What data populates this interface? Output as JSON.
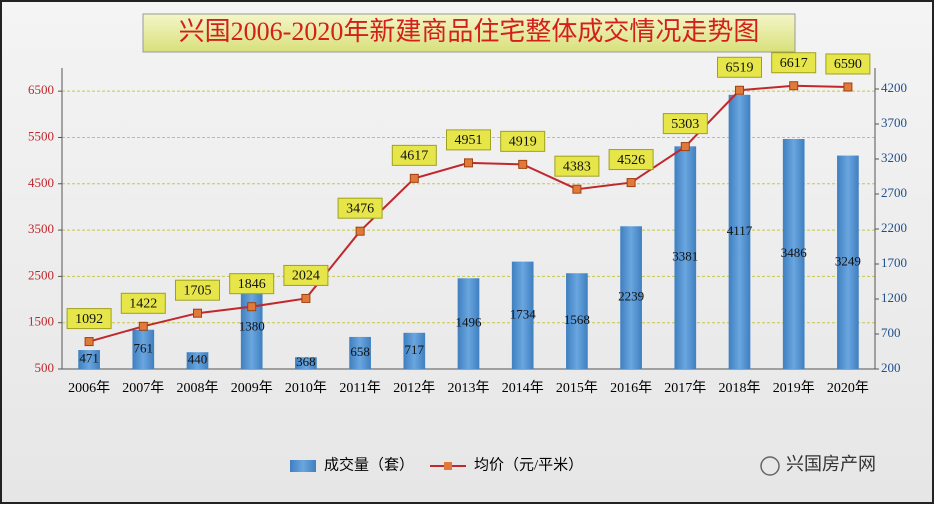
{
  "chart_data": {
    "type": "combo",
    "title": "兴国2006-2020年新建商品住宅整体成交情况走势图",
    "categories": [
      "2006年",
      "2007年",
      "2008年",
      "2009年",
      "2010年",
      "2011年",
      "2012年",
      "2013年",
      "2014年",
      "2015年",
      "2016年",
      "2017年",
      "2018年",
      "2019年",
      "2020年"
    ],
    "series": [
      {
        "name": "成交量（套）",
        "type": "bar",
        "axis": "y2",
        "color": "#5b9bd5",
        "values": [
          471,
          761,
          440,
          1380,
          368,
          658,
          717,
          1496,
          1734,
          1568,
          2239,
          3381,
          4117,
          3486,
          3249
        ]
      },
      {
        "name": "均价（元/平米）",
        "type": "line",
        "axis": "y",
        "color": "#c0282d",
        "marker_color": "#e07a3a",
        "values": [
          1092,
          1422,
          1705,
          1846,
          2024,
          3476,
          4617,
          4951,
          4919,
          4383,
          4526,
          5303,
          6519,
          6617,
          6590
        ]
      }
    ],
    "ylim": [
      500,
      7000
    ],
    "yticks": [
      500,
      1500,
      2500,
      3500,
      4500,
      5500,
      6500
    ],
    "y2lim": [
      200,
      4500
    ],
    "y2ticks": [
      200,
      700,
      1200,
      1700,
      2200,
      2700,
      3200,
      3700,
      4200
    ],
    "grid": true,
    "legend": "bottom",
    "watermark": "兴国房产网"
  }
}
